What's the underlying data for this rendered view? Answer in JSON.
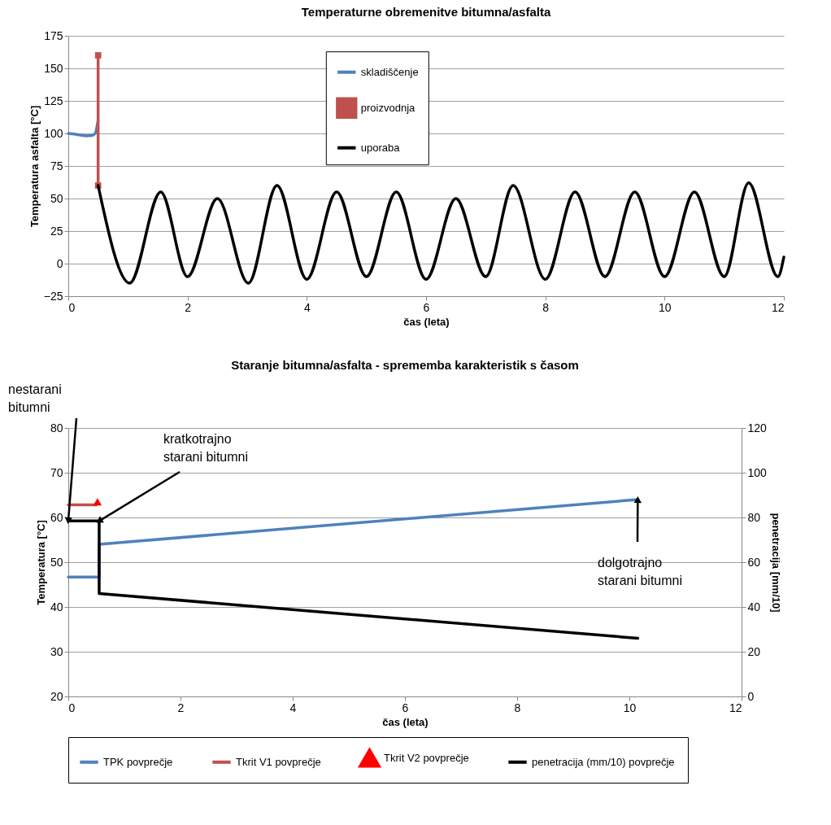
{
  "chart_data": [
    {
      "type": "line",
      "title": "Temperaturne obremenitve bitumna/asfalta",
      "xlabel": "čas (leta)",
      "ylabel": "Temperatura asfalta  [°C]",
      "xlim": [
        0,
        12
      ],
      "xticks": [
        0,
        2,
        4,
        6,
        8,
        10,
        12
      ],
      "ylim": [
        -25,
        175
      ],
      "yticks": [
        -25,
        0,
        25,
        50,
        75,
        100,
        125,
        150,
        175
      ],
      "grid": "y",
      "legend": "top",
      "series": [
        {
          "name": "skladiščenje",
          "color": "#4f81bd",
          "x": [
            0,
            0.1,
            0.2,
            0.3,
            0.4,
            0.45,
            0.5
          ],
          "values": [
            100,
            99.5,
            98.8,
            98.2,
            98.5,
            100,
            110
          ]
        },
        {
          "name": "proizvodnja",
          "color": "#c0504d",
          "marker": "square",
          "x": [
            0.5,
            0.5
          ],
          "values": [
            160,
            60
          ]
        },
        {
          "name": "uporaba",
          "color": "#000000",
          "x": [
            0.5,
            1.03,
            1.55,
            2.0,
            2.5,
            3.02,
            3.5,
            4.0,
            4.5,
            5.0,
            5.5,
            6.0,
            6.5,
            7.0,
            7.46,
            8.0,
            8.5,
            9.0,
            9.5,
            10.0,
            10.5,
            11.0,
            11.41,
            11.9,
            12
          ],
          "values": [
            60,
            -15,
            55,
            -10,
            50,
            -15,
            60,
            -12,
            55,
            -10,
            55,
            -12,
            50,
            -10,
            60,
            -12,
            55,
            -10,
            55,
            -10,
            55,
            -10,
            62,
            -10,
            5
          ]
        }
      ]
    },
    {
      "type": "line",
      "title": "Staranje bitumna/asfalta - sprememba karakteristik s časom",
      "xlabel": "čas (leta)",
      "ylabel": "Temperatura [°C]",
      "y2label": "penetracija  [mm/10]",
      "xlim": [
        0,
        12
      ],
      "xticks": [
        0,
        2,
        4,
        6,
        8,
        10,
        12
      ],
      "ylim": [
        20,
        80
      ],
      "yticks": [
        20,
        30,
        40,
        50,
        60,
        70,
        80
      ],
      "y2lim": [
        0,
        120
      ],
      "y2ticks": [
        0,
        20,
        40,
        60,
        80,
        100,
        120
      ],
      "grid": "y",
      "legend": "bottom",
      "series": [
        {
          "name": "TPK povprečje",
          "color": "#4f81bd",
          "x": [
            0,
            0.55,
            0.55,
            10.15
          ],
          "values": [
            46.7,
            46.7,
            54,
            64
          ]
        },
        {
          "name": "Tkrit V1 povprečje",
          "color": "#c0504d",
          "x": [
            0,
            0.5
          ],
          "values": [
            62.8,
            62.8
          ]
        },
        {
          "name": "Tkrit V2 povprečje",
          "type": "scatter",
          "marker": "triangle",
          "color": "#ff0000",
          "x": [
            0.52
          ],
          "values": [
            63.5
          ]
        },
        {
          "name": "penetracija  (mm/10) povprečje",
          "color": "#000000",
          "axis": "y2",
          "x": [
            0,
            0.55,
            0.55,
            10.15
          ],
          "values": [
            78.5,
            78.5,
            46,
            26
          ]
        }
      ],
      "annotations": [
        {
          "text": "nestarani bitumni",
          "x": 0,
          "y": 59.3
        },
        {
          "text": "kratkotrajno starani bitumni",
          "x": 0.55,
          "y": 59.2
        },
        {
          "text": "dolgotrajno starani bitumni",
          "x": 10.15,
          "y": 64
        }
      ]
    }
  ]
}
